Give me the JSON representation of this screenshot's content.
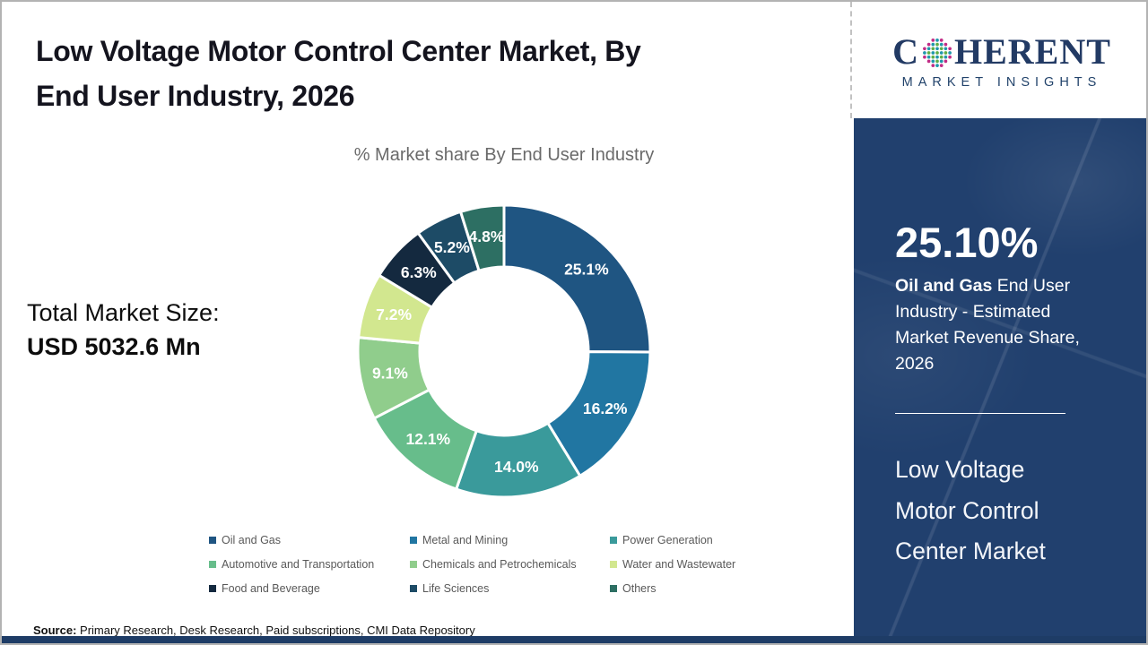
{
  "header": {
    "title_lines": [
      "Low Voltage Motor Control Center Market, By",
      "End User Industry, 2026"
    ],
    "full_title": "Low Voltage Motor Control Center Market, By End User Industry, 2026"
  },
  "logo": {
    "part1": "C",
    "part2": "HERENT",
    "tagline": "MARKET INSIGHTS",
    "text_color": "#223a64",
    "globe_colors": {
      "magenta": "#c12c86",
      "teal": "#2097ac",
      "green": "#5fae48"
    }
  },
  "chart_data": {
    "type": "pie",
    "subtype": "donut",
    "title": "% Market share By End User Industry",
    "categories": [
      "Oil and Gas",
      "Metal and Mining",
      "Power Generation",
      "Automotive and Transportation",
      "Chemicals and Petrochemicals",
      "Water and Wastewater",
      "Food and Beverage",
      "Life Sciences",
      "Others"
    ],
    "values": [
      25.1,
      16.2,
      14.0,
      12.1,
      9.1,
      7.2,
      6.3,
      5.2,
      4.8
    ],
    "value_labels": [
      "25.1%",
      "16.2%",
      "14.0%",
      "12.1%",
      "9.1%",
      "7.2%",
      "6.3%",
      "5.2%",
      "4.8%"
    ],
    "colors": [
      "#1f5582",
      "#2176a2",
      "#3a9a9b",
      "#67bd8b",
      "#90cd8c",
      "#d2e78f",
      "#14293f",
      "#1d4b66",
      "#2d6f63"
    ],
    "start_angle_deg": 0,
    "direction": "clockwise",
    "inner_radius_ratio": 0.577,
    "legend_position": "bottom"
  },
  "total_market": {
    "label": "Total Market Size:",
    "value": "USD 5032.6 Mn"
  },
  "sidebar": {
    "stat_value": "25.10%",
    "stat_desc_bold": "Oil and Gas",
    "stat_desc_rest": " End User Industry - Estimated Market Revenue Share, 2026",
    "market_name_lines": [
      "Low Voltage",
      "Motor Control",
      "Center Market"
    ],
    "background_color": "#21406e"
  },
  "footer": {
    "source_label": "Source:",
    "source_text": " Primary Research, Desk Research, Paid subscriptions, CMI Data Repository"
  }
}
